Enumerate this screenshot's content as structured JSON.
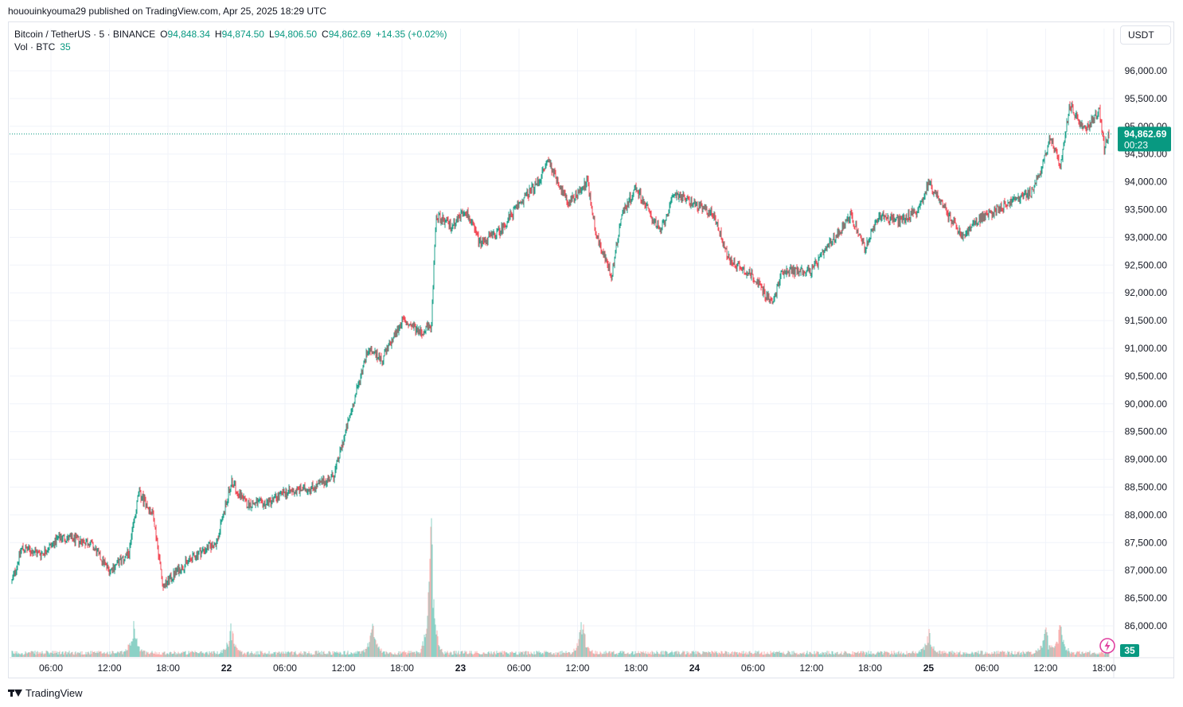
{
  "header": {
    "publish_text": "hououinkyouma29 published on TradingView.com, Apr 25, 2025 18:29 UTC"
  },
  "legend": {
    "symbol": "Bitcoin / TetherUS · 5 · BINANCE",
    "o_label": "O",
    "o_value": "94,848.34",
    "h_label": "H",
    "h_value": "94,874.50",
    "l_label": "L",
    "l_value": "94,806.50",
    "c_label": "C",
    "c_value": "94,862.69",
    "change": "+14.35 (+0.02%)",
    "vol_label": "Vol · BTC",
    "vol_value": "35"
  },
  "currency_button": "USDT",
  "price_badge": {
    "price": "94,862.69",
    "countdown": "00:23"
  },
  "volume_badge": "35",
  "footer": {
    "brand": "TradingView"
  },
  "colors": {
    "up": "#089981",
    "down": "#f23645",
    "up_vol": "#7fccc0",
    "down_vol": "#f7a9a7",
    "grid": "#f0f3fa"
  },
  "chart_data": {
    "type": "candlestick",
    "symbol": "BTCUSDT",
    "interval": "5",
    "ylim": [
      85500,
      96400
    ],
    "y_ticks": [
      86000,
      86500,
      87000,
      87500,
      88000,
      88500,
      89000,
      89500,
      90000,
      90500,
      91000,
      91500,
      92000,
      92500,
      93000,
      93500,
      94000,
      94500,
      95000,
      95500,
      96000
    ],
    "y_tick_labels": [
      "86,000.00",
      "86,500.00",
      "87,000.00",
      "87,500.00",
      "88,000.00",
      "88,500.00",
      "89,000.00",
      "89,500.00",
      "90,000.00",
      "90,500.00",
      "91,000.00",
      "91,500.00",
      "92,000.00",
      "92,500.00",
      "93,000.00",
      "93,500.00",
      "94,000.00",
      "94,500.00",
      "95,000.00",
      "95,500.00",
      "96,000.00"
    ],
    "x_range": [
      "Apr 21 02:00",
      "Apr 25 18:30"
    ],
    "x_ticks": [
      {
        "t": "2025-04-21T06:00",
        "label": "06:00",
        "bold": false
      },
      {
        "t": "2025-04-21T12:00",
        "label": "12:00",
        "bold": false
      },
      {
        "t": "2025-04-21T18:00",
        "label": "18:00",
        "bold": false
      },
      {
        "t": "2025-04-22T00:00",
        "label": "22",
        "bold": true
      },
      {
        "t": "2025-04-22T06:00",
        "label": "06:00",
        "bold": false
      },
      {
        "t": "2025-04-22T12:00",
        "label": "12:00",
        "bold": false
      },
      {
        "t": "2025-04-22T18:00",
        "label": "18:00",
        "bold": false
      },
      {
        "t": "2025-04-23T00:00",
        "label": "23",
        "bold": true
      },
      {
        "t": "2025-04-23T06:00",
        "label": "06:00",
        "bold": false
      },
      {
        "t": "2025-04-23T12:00",
        "label": "12:00",
        "bold": false
      },
      {
        "t": "2025-04-23T18:00",
        "label": "18:00",
        "bold": false
      },
      {
        "t": "2025-04-24T00:00",
        "label": "24",
        "bold": true
      },
      {
        "t": "2025-04-24T06:00",
        "label": "06:00",
        "bold": false
      },
      {
        "t": "2025-04-24T12:00",
        "label": "12:00",
        "bold": false
      },
      {
        "t": "2025-04-24T18:00",
        "label": "18:00",
        "bold": false
      },
      {
        "t": "2025-04-25T00:00",
        "label": "25",
        "bold": true
      },
      {
        "t": "2025-04-25T06:00",
        "label": "06:00",
        "bold": false
      },
      {
        "t": "2025-04-25T12:00",
        "label": "12:00",
        "bold": false
      },
      {
        "t": "2025-04-25T18:00",
        "label": "18:00",
        "bold": false
      }
    ],
    "last_price": 94862.69,
    "price_path": [
      {
        "t": "2025-04-21T02:00",
        "price": 86800
      },
      {
        "t": "2025-04-21T03:00",
        "price": 87400
      },
      {
        "t": "2025-04-21T05:00",
        "price": 87300
      },
      {
        "t": "2025-04-21T07:00",
        "price": 87600
      },
      {
        "t": "2025-04-21T10:00",
        "price": 87500
      },
      {
        "t": "2025-04-21T12:00",
        "price": 87000
      },
      {
        "t": "2025-04-21T14:00",
        "price": 87300
      },
      {
        "t": "2025-04-21T15:00",
        "price": 88400
      },
      {
        "t": "2025-04-21T16:30",
        "price": 88000
      },
      {
        "t": "2025-04-21T17:30",
        "price": 86700
      },
      {
        "t": "2025-04-21T19:00",
        "price": 87000
      },
      {
        "t": "2025-04-21T21:00",
        "price": 87300
      },
      {
        "t": "2025-04-21T23:00",
        "price": 87500
      },
      {
        "t": "2025-04-22T00:30",
        "price": 88600
      },
      {
        "t": "2025-04-22T02:00",
        "price": 88200
      },
      {
        "t": "2025-04-22T04:00",
        "price": 88200
      },
      {
        "t": "2025-04-22T06:00",
        "price": 88400
      },
      {
        "t": "2025-04-22T09:00",
        "price": 88500
      },
      {
        "t": "2025-04-22T11:00",
        "price": 88700
      },
      {
        "t": "2025-04-22T13:00",
        "price": 90000
      },
      {
        "t": "2025-04-22T14:30",
        "price": 91000
      },
      {
        "t": "2025-04-22T16:00",
        "price": 90800
      },
      {
        "t": "2025-04-22T18:00",
        "price": 91500
      },
      {
        "t": "2025-04-22T20:00",
        "price": 91300
      },
      {
        "t": "2025-04-22T21:00",
        "price": 91400
      },
      {
        "t": "2025-04-22T21:30",
        "price": 93400
      },
      {
        "t": "2025-04-22T23:00",
        "price": 93200
      },
      {
        "t": "2025-04-23T00:30",
        "price": 93500
      },
      {
        "t": "2025-04-23T02:00",
        "price": 92900
      },
      {
        "t": "2025-04-23T04:00",
        "price": 93100
      },
      {
        "t": "2025-04-23T06:00",
        "price": 93600
      },
      {
        "t": "2025-04-23T08:00",
        "price": 94000
      },
      {
        "t": "2025-04-23T09:00",
        "price": 94400
      },
      {
        "t": "2025-04-23T11:00",
        "price": 93600
      },
      {
        "t": "2025-04-23T13:00",
        "price": 94000
      },
      {
        "t": "2025-04-23T14:00",
        "price": 93000
      },
      {
        "t": "2025-04-23T15:30",
        "price": 92300
      },
      {
        "t": "2025-04-23T16:30",
        "price": 93400
      },
      {
        "t": "2025-04-23T18:00",
        "price": 93900
      },
      {
        "t": "2025-04-23T19:30",
        "price": 93400
      },
      {
        "t": "2025-04-23T20:30",
        "price": 93100
      },
      {
        "t": "2025-04-23T22:00",
        "price": 93800
      },
      {
        "t": "2025-04-24T00:00",
        "price": 93600
      },
      {
        "t": "2025-04-24T02:00",
        "price": 93400
      },
      {
        "t": "2025-04-24T03:30",
        "price": 92600
      },
      {
        "t": "2025-04-24T06:00",
        "price": 92300
      },
      {
        "t": "2025-04-24T08:00",
        "price": 91800
      },
      {
        "t": "2025-04-24T09:00",
        "price": 92400
      },
      {
        "t": "2025-04-24T12:00",
        "price": 92400
      },
      {
        "t": "2025-04-24T14:00",
        "price": 92900
      },
      {
        "t": "2025-04-24T16:00",
        "price": 93400
      },
      {
        "t": "2025-04-24T17:30",
        "price": 92800
      },
      {
        "t": "2025-04-24T19:00",
        "price": 93400
      },
      {
        "t": "2025-04-24T21:00",
        "price": 93300
      },
      {
        "t": "2025-04-24T23:00",
        "price": 93500
      },
      {
        "t": "2025-04-25T00:00",
        "price": 94000
      },
      {
        "t": "2025-04-25T01:00",
        "price": 93700
      },
      {
        "t": "2025-04-25T02:00",
        "price": 93400
      },
      {
        "t": "2025-04-25T03:30",
        "price": 93000
      },
      {
        "t": "2025-04-25T05:00",
        "price": 93300
      },
      {
        "t": "2025-04-25T07:00",
        "price": 93500
      },
      {
        "t": "2025-04-25T09:00",
        "price": 93700
      },
      {
        "t": "2025-04-25T10:30",
        "price": 93800
      },
      {
        "t": "2025-04-25T11:30",
        "price": 94200
      },
      {
        "t": "2025-04-25T12:30",
        "price": 94800
      },
      {
        "t": "2025-04-25T13:30",
        "price": 94300
      },
      {
        "t": "2025-04-25T14:30",
        "price": 95400
      },
      {
        "t": "2025-04-25T16:00",
        "price": 94900
      },
      {
        "t": "2025-04-25T17:30",
        "price": 95300
      },
      {
        "t": "2025-04-25T18:00",
        "price": 94600
      },
      {
        "t": "2025-04-25T18:30",
        "price": 94862.69
      }
    ],
    "volume_spikes": [
      {
        "t": "2025-04-21T14:30",
        "level": 0.75
      },
      {
        "t": "2025-04-22T00:30",
        "level": 0.7
      },
      {
        "t": "2025-04-22T15:00",
        "level": 0.8
      },
      {
        "t": "2025-04-22T21:00",
        "level": 3.0
      },
      {
        "t": "2025-04-23T12:30",
        "level": 1.0
      },
      {
        "t": "2025-04-25T00:00",
        "level": 0.55
      },
      {
        "t": "2025-04-25T12:00",
        "level": 0.6
      },
      {
        "t": "2025-04-25T13:30",
        "level": 0.9
      }
    ]
  }
}
